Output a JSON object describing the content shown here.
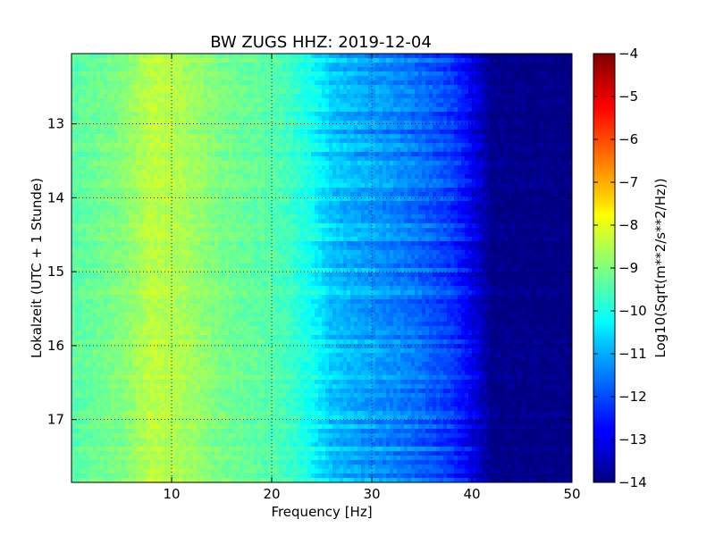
{
  "chart_data": {
    "type": "heatmap",
    "title": "BW ZUGS HHZ: 2019-12-04",
    "xlabel": "Frequency [Hz]",
    "ylabel": "Lokalzeit (UTC + 1 Stunde)",
    "xlim": [
      0,
      50
    ],
    "ylim": [
      12.05,
      17.85
    ],
    "y_inverted": true,
    "xticks": [
      10,
      20,
      30,
      40,
      50
    ],
    "yticks": [
      13,
      14,
      15,
      16,
      17
    ],
    "grid": true,
    "colormap": "jet",
    "colorbar": {
      "label": "Log10(Sqrt(m**2/s**2/Hz))",
      "range": [
        -14,
        -4
      ],
      "ticks": [
        -4,
        -5,
        -6,
        -7,
        -8,
        -9,
        -10,
        -11,
        -12,
        -13,
        -14
      ]
    },
    "spectrum_profile": {
      "frequency_hz": [
        0,
        5,
        8,
        10,
        12,
        15,
        20,
        22,
        24,
        26,
        28,
        30,
        32,
        34,
        36,
        38,
        40,
        41,
        42,
        50
      ],
      "log10_amplitude": [
        -9.4,
        -9.0,
        -8.4,
        -8.5,
        -8.7,
        -9.1,
        -9.4,
        -9.7,
        -10.1,
        -10.8,
        -11.0,
        -11.2,
        -11.4,
        -11.6,
        -11.9,
        -12.2,
        -12.9,
        -13.4,
        -13.9,
        -14.0
      ]
    }
  }
}
